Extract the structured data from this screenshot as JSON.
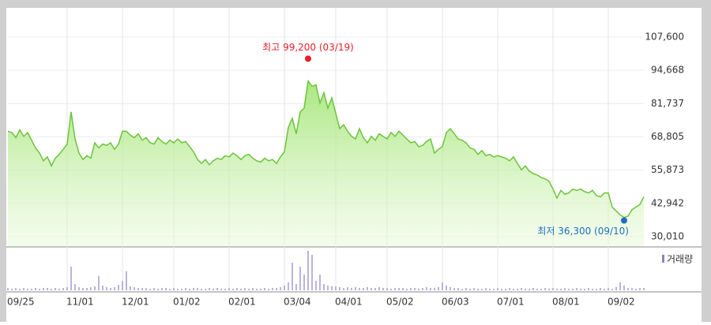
{
  "chart_data": {
    "type": "line",
    "categories": [
      "09/25",
      null,
      null,
      null,
      null,
      null,
      null,
      null,
      null,
      null,
      null,
      null,
      null,
      null,
      null,
      "11/01",
      null,
      null,
      null,
      null,
      null,
      null,
      null,
      null,
      null,
      null,
      null,
      null,
      null,
      "12/01",
      null,
      null,
      null,
      null,
      null,
      null,
      null,
      null,
      null,
      null,
      null,
      null,
      "01/02",
      null,
      null,
      null,
      null,
      null,
      null,
      null,
      null,
      null,
      null,
      null,
      null,
      null,
      "02/01",
      null,
      null,
      null,
      null,
      null,
      null,
      null,
      null,
      null,
      null,
      null,
      null,
      null,
      "03/04",
      null,
      null,
      null,
      null,
      null,
      null,
      null,
      null,
      null,
      null,
      null,
      null,
      "04/01",
      null,
      null,
      null,
      null,
      null,
      null,
      null,
      null,
      null,
      null,
      null,
      null,
      "05/02",
      null,
      null,
      null,
      null,
      null,
      null,
      null,
      null,
      null,
      null,
      null,
      null,
      null,
      "06/03",
      null,
      null,
      null,
      null,
      null,
      null,
      null,
      null,
      null,
      null,
      null,
      null,
      null,
      "07/01",
      null,
      null,
      null,
      null,
      null,
      null,
      null,
      null,
      null,
      null,
      null,
      null,
      null,
      "08/01",
      null,
      null,
      null,
      null,
      null,
      null,
      null,
      null,
      null,
      null,
      null,
      null,
      null,
      "09/02",
      null,
      null,
      null,
      null,
      null,
      null,
      null,
      null,
      null
    ],
    "series": [
      {
        "color": "#6cc43a",
        "values": [
          71000,
          70500,
          68500,
          71500,
          69000,
          70500,
          67500,
          64500,
          62500,
          59500,
          61000,
          57500,
          60500,
          62000,
          64000,
          66000,
          78500,
          68000,
          62500,
          60000,
          61500,
          60500,
          66500,
          64500,
          66000,
          65500,
          66500,
          64000,
          66000,
          71000,
          71000,
          69500,
          68500,
          70000,
          67500,
          68500,
          66500,
          66000,
          68500,
          67000,
          66000,
          67500,
          66500,
          68000,
          66500,
          67000,
          65000,
          63000,
          60000,
          58500,
          60000,
          58000,
          59500,
          60500,
          60000,
          61500,
          61000,
          62500,
          61500,
          60000,
          61500,
          62000,
          60500,
          59500,
          59000,
          60500,
          59500,
          60000,
          58500,
          61000,
          63000,
          72500,
          76000,
          70000,
          78500,
          80000,
          90500,
          88500,
          89000,
          82000,
          86000,
          80000,
          84000,
          78000,
          72000,
          73500,
          71000,
          69000,
          68000,
          72000,
          68500,
          66500,
          69000,
          67500,
          70000,
          69000,
          68000,
          70500,
          69000,
          71000,
          69500,
          68000,
          66500,
          67000,
          65000,
          65500,
          67000,
          68000,
          62500,
          64000,
          65000,
          70500,
          72000,
          70000,
          68000,
          67500,
          66500,
          64500,
          64000,
          62000,
          63500,
          61500,
          62000,
          61000,
          61500,
          61000,
          60500,
          59500,
          61000,
          58500,
          56000,
          57500,
          55500,
          54500,
          54000,
          53000,
          52500,
          51500,
          48500,
          45000,
          48000,
          46500,
          47000,
          48500,
          48000,
          48500,
          47500,
          47000,
          48000,
          46000,
          45500,
          47000,
          47000,
          41500,
          40000,
          38500,
          37500,
          38000,
          40500,
          41500,
          42500,
          45500
        ]
      },
      {
        "name": "거래량",
        "type": "bar",
        "color": "#8e80c8",
        "values": [
          3,
          2,
          3,
          2,
          3,
          2,
          2,
          3,
          2,
          3,
          3,
          2,
          3,
          2,
          3,
          4,
          30,
          8,
          4,
          3,
          3,
          4,
          5,
          18,
          6,
          4,
          3,
          4,
          7,
          12,
          24,
          5,
          4,
          3,
          3,
          3,
          2,
          3,
          2,
          3,
          3,
          2,
          3,
          2,
          2,
          3,
          2,
          3,
          3,
          2,
          2,
          3,
          2,
          3,
          2,
          2,
          3,
          2,
          3,
          2,
          3,
          2,
          3,
          2,
          2,
          3,
          2,
          3,
          3,
          4,
          6,
          10,
          35,
          8,
          30,
          20,
          50,
          45,
          12,
          20,
          8,
          6,
          5,
          5,
          4,
          3,
          4,
          3,
          4,
          3,
          3,
          4,
          3,
          3,
          4,
          3,
          3,
          2,
          3,
          3,
          3,
          2,
          3,
          3,
          2,
          3,
          4,
          3,
          3,
          4,
          10,
          6,
          4,
          3,
          3,
          2,
          3,
          2,
          3,
          2,
          2,
          3,
          2,
          2,
          3,
          2,
          2,
          3,
          2,
          2,
          3,
          2,
          2,
          3,
          2,
          2,
          3,
          2,
          3,
          2,
          2,
          3,
          2,
          2,
          3,
          2,
          2,
          3,
          2,
          2,
          3,
          2,
          3,
          2,
          4,
          10,
          6,
          3,
          3,
          2,
          3,
          3
        ]
      }
    ],
    "ylim": [
      30010,
      107600
    ],
    "yticks": [
      {
        "value": 30010,
        "label": "30,010"
      },
      {
        "value": 42942,
        "label": "42,942"
      },
      {
        "value": 55873,
        "label": "55,873"
      },
      {
        "value": 68805,
        "label": "68,805"
      },
      {
        "value": 81737,
        "label": "81,737"
      },
      {
        "value": 94668,
        "label": "94,668"
      },
      {
        "value": 107600,
        "label": "107,600"
      }
    ],
    "grid": true,
    "annotations": [
      {
        "text": "최고 99,200 (03/19)",
        "value": 99200,
        "index": 76,
        "color": "#e5202a"
      },
      {
        "text": "최저 36,300 (09/10)",
        "value": 36300,
        "index": 156,
        "color": "#1f6fbf"
      }
    ]
  }
}
